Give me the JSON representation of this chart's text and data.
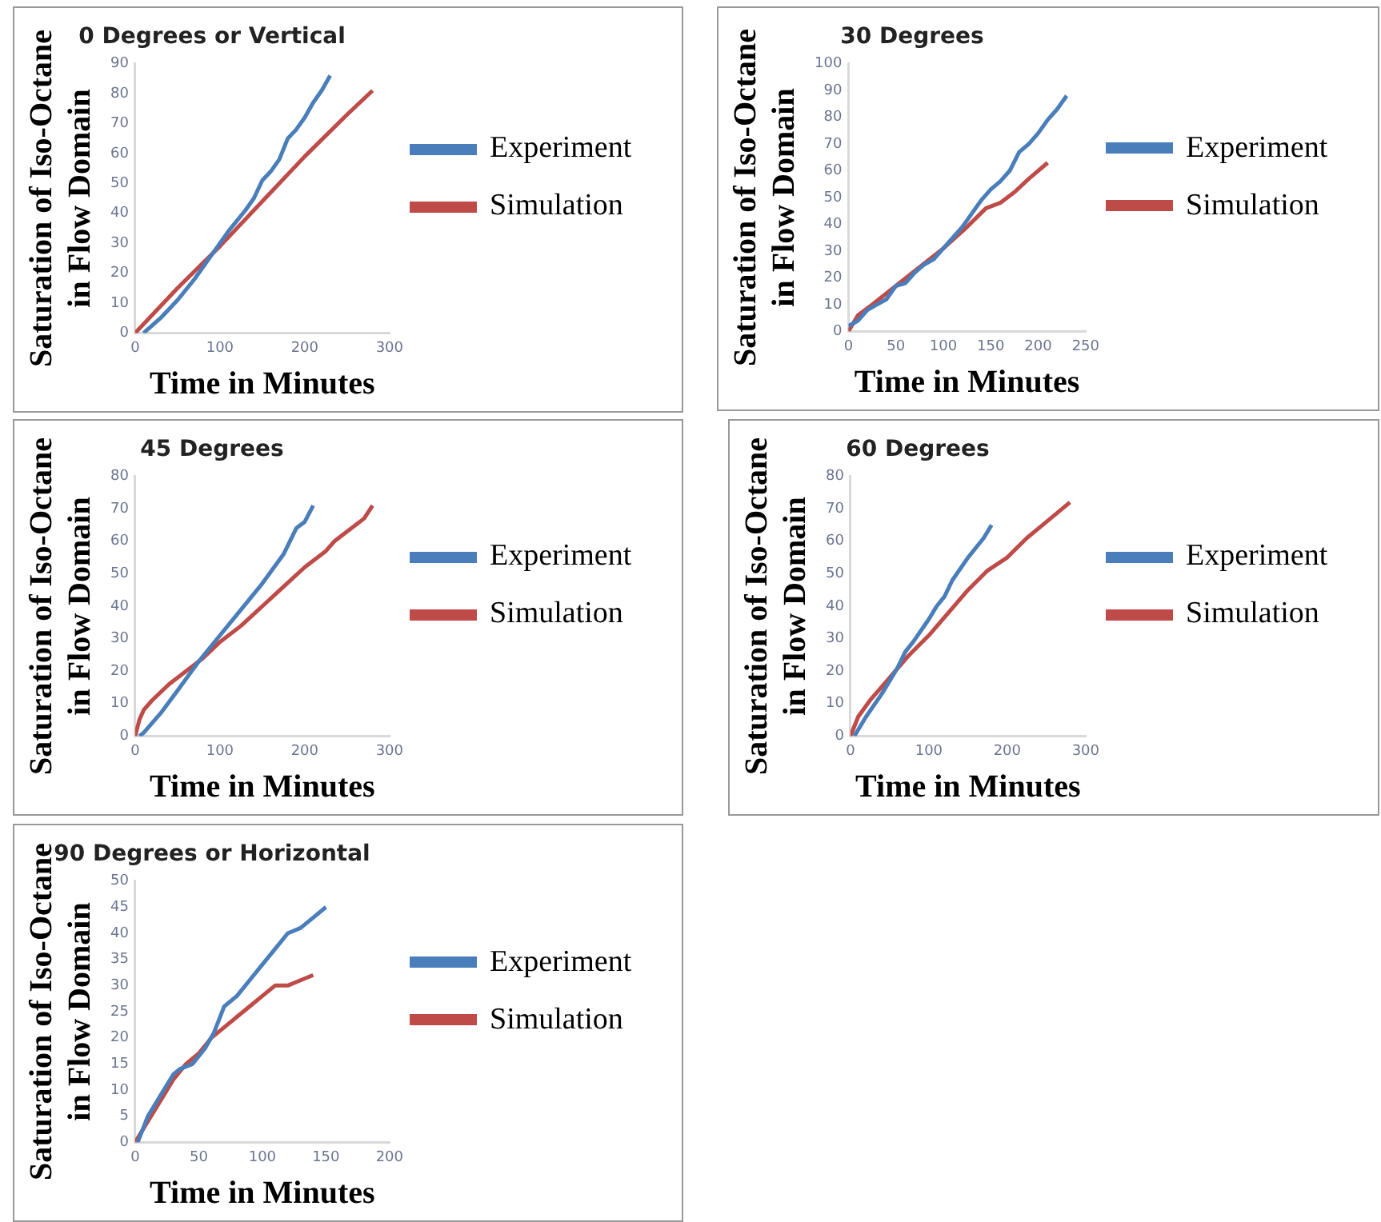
{
  "chart_data": [
    {
      "type": "line",
      "title": "0 Degrees or Vertical",
      "xlabel": "Time in Minutes",
      "ylabel": "Saturation of Iso-Octane\nin Flow Domain",
      "xlim": [
        0,
        300
      ],
      "xticks": [
        0,
        100,
        200,
        300
      ],
      "ylim": [
        0,
        90
      ],
      "yticks": [
        0,
        10,
        20,
        30,
        40,
        50,
        60,
        70,
        80,
        90
      ],
      "grid": false,
      "legend": "right",
      "marker": "none",
      "line_style": "solid",
      "series": [
        {
          "name": "Experiment",
          "color": "#4a7ebb",
          "x": [
            10,
            30,
            50,
            70,
            90,
            110,
            130,
            140,
            150,
            160,
            170,
            180,
            190,
            200,
            210,
            220,
            230
          ],
          "values": [
            0,
            5,
            11,
            18,
            26,
            34,
            41,
            45,
            51,
            54,
            58,
            65,
            68,
            72,
            77,
            81,
            86
          ]
        },
        {
          "name": "Simulation",
          "color": "#be4b48",
          "x": [
            0,
            50,
            100,
            150,
            200,
            250,
            280
          ],
          "values": [
            0,
            15,
            29,
            44,
            59,
            73,
            81
          ]
        }
      ]
    },
    {
      "type": "line",
      "title": "30 Degrees",
      "xlabel": "Time in Minutes",
      "ylabel": "Saturation of Iso-Octane\nin Flow Domain",
      "xlim": [
        0,
        250
      ],
      "xticks": [
        0,
        50,
        100,
        150,
        200,
        250
      ],
      "ylim": [
        0,
        100
      ],
      "yticks": [
        0,
        10,
        20,
        30,
        40,
        50,
        60,
        70,
        80,
        90,
        100
      ],
      "grid": false,
      "legend": "right",
      "marker": "none",
      "line_style": "solid",
      "series": [
        {
          "name": "Experiment",
          "color": "#4a7ebb",
          "x": [
            0,
            10,
            20,
            30,
            40,
            50,
            60,
            70,
            80,
            90,
            100,
            110,
            120,
            130,
            140,
            150,
            160,
            170,
            180,
            190,
            200,
            210,
            220,
            230
          ],
          "values": [
            2,
            4,
            8,
            10,
            12,
            17,
            18,
            22,
            25,
            27,
            31,
            35,
            39,
            44,
            49,
            53,
            56,
            60,
            67,
            70,
            74,
            79,
            83,
            88
          ]
        },
        {
          "name": "Simulation",
          "color": "#be4b48",
          "x": [
            0,
            10,
            25,
            50,
            75,
            100,
            125,
            145,
            160,
            175,
            190,
            210
          ],
          "values": [
            0,
            6,
            10,
            17,
            24,
            31,
            39,
            46,
            48,
            52,
            57,
            63
          ]
        }
      ]
    },
    {
      "type": "line",
      "title": "45 Degrees",
      "xlabel": "Time in Minutes",
      "ylabel": "Saturation of Iso-Octane\nin Flow Domain",
      "xlim": [
        0,
        300
      ],
      "xticks": [
        0,
        100,
        200,
        300
      ],
      "ylim": [
        0,
        80
      ],
      "yticks": [
        0,
        10,
        20,
        30,
        40,
        50,
        60,
        70,
        80
      ],
      "grid": false,
      "legend": "right",
      "marker": "none",
      "line_style": "solid",
      "series": [
        {
          "name": "Experiment",
          "color": "#4a7ebb",
          "x": [
            5,
            10,
            20,
            30,
            50,
            75,
            100,
            125,
            150,
            175,
            190,
            195,
            200,
            210
          ],
          "values": [
            0,
            1,
            4,
            7,
            14,
            23,
            31,
            39,
            47,
            56,
            64,
            65,
            66,
            71
          ]
        },
        {
          "name": "Simulation",
          "color": "#be4b48",
          "x": [
            0,
            5,
            10,
            20,
            40,
            60,
            80,
            100,
            125,
            150,
            175,
            200,
            225,
            235,
            255,
            270,
            280
          ],
          "values": [
            0,
            5,
            8,
            11,
            16,
            20,
            24,
            29,
            34,
            40,
            46,
            52,
            57,
            60,
            64,
            67,
            71
          ]
        }
      ]
    },
    {
      "type": "line",
      "title": "60 Degrees",
      "xlabel": "Time in Minutes",
      "ylabel": "Saturation of Iso-Octane\nin Flow Domain",
      "xlim": [
        0,
        300
      ],
      "xticks": [
        0,
        100,
        200,
        300
      ],
      "ylim": [
        0,
        80
      ],
      "yticks": [
        0,
        10,
        20,
        30,
        40,
        50,
        60,
        70,
        80
      ],
      "grid": false,
      "legend": "right",
      "marker": "none",
      "line_style": "solid",
      "series": [
        {
          "name": "Experiment",
          "color": "#4a7ebb",
          "x": [
            5,
            20,
            40,
            50,
            60,
            70,
            80,
            100,
            110,
            120,
            130,
            150,
            170,
            180
          ],
          "values": [
            0,
            6,
            13,
            17,
            21,
            26,
            29,
            36,
            40,
            43,
            48,
            55,
            61,
            65
          ]
        },
        {
          "name": "Simulation",
          "color": "#be4b48",
          "x": [
            0,
            10,
            25,
            50,
            75,
            100,
            125,
            150,
            175,
            200,
            225,
            240,
            260,
            280
          ],
          "values": [
            0,
            6,
            11,
            18,
            25,
            31,
            38,
            45,
            51,
            55,
            61,
            64,
            68,
            72
          ]
        }
      ]
    },
    {
      "type": "line",
      "title": "90 Degrees or Horizontal",
      "xlabel": "Time in Minutes",
      "ylabel": "Saturation of Iso-Octane\nin Flow Domain",
      "xlim": [
        0,
        200
      ],
      "xticks": [
        0,
        50,
        100,
        150,
        200
      ],
      "ylim": [
        0,
        50
      ],
      "yticks": [
        0,
        5,
        10,
        15,
        20,
        25,
        30,
        35,
        40,
        45,
        50
      ],
      "grid": false,
      "legend": "right",
      "marker": "none",
      "line_style": "solid",
      "series": [
        {
          "name": "Experiment",
          "color": "#4a7ebb",
          "x": [
            2,
            10,
            20,
            30,
            35,
            45,
            55,
            62,
            70,
            80,
            90,
            100,
            110,
            120,
            130,
            140,
            150
          ],
          "values": [
            0,
            5,
            9,
            13,
            14,
            15,
            18,
            21,
            26,
            28,
            31,
            34,
            37,
            40,
            41,
            43,
            45
          ]
        },
        {
          "name": "Simulation",
          "color": "#be4b48",
          "x": [
            0,
            10,
            20,
            30,
            40,
            50,
            60,
            70,
            80,
            90,
            100,
            110,
            120,
            130,
            140
          ],
          "values": [
            0,
            4,
            8,
            12,
            15,
            17,
            20,
            22,
            24,
            26,
            28,
            30,
            30,
            31,
            32
          ]
        }
      ]
    }
  ]
}
